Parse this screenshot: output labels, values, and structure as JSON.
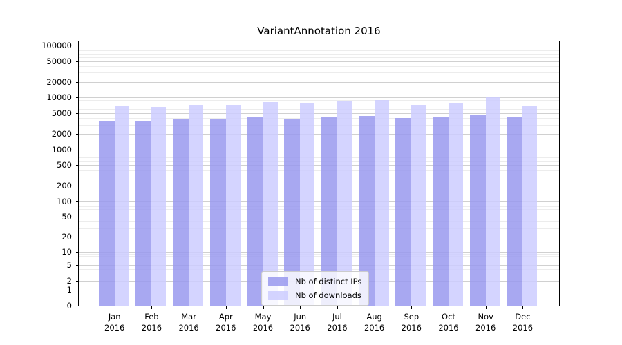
{
  "title": "VariantAnnotation 2016",
  "legend": {
    "items": [
      {
        "label": "Nb of distinct IPs"
      },
      {
        "label": "Nb of downloads"
      }
    ]
  },
  "colors": {
    "distinct_ips": "#9999ee",
    "downloads": "#ccccff",
    "grid_major": "#d0d0d0",
    "grid_minor": "#ececec",
    "axis": "#000000",
    "legend_border": "#cccccc"
  },
  "chart_data": {
    "type": "bar",
    "title": "VariantAnnotation 2016",
    "categories": [
      "Jan",
      "Feb",
      "Mar",
      "Apr",
      "May",
      "Jun",
      "Jul",
      "Aug",
      "Sep",
      "Oct",
      "Nov",
      "Dec"
    ],
    "year_label": "2016",
    "series": [
      {
        "name": "Nb of distinct IPs",
        "color": "#9999ee",
        "values": [
          3430,
          3620,
          3880,
          3930,
          4130,
          3810,
          4350,
          4400,
          4000,
          4220,
          4720,
          4130
        ]
      },
      {
        "name": "Nb of downloads",
        "color": "#ccccff",
        "values": [
          6870,
          6660,
          7150,
          7240,
          8180,
          7600,
          8800,
          8900,
          7150,
          7620,
          10310,
          6890
        ]
      }
    ],
    "y_axis": {
      "scale": "log10(value+1)",
      "tick_values": [
        0,
        1,
        2,
        5,
        10,
        20,
        50,
        100,
        200,
        500,
        1000,
        2000,
        5000,
        10000,
        20000,
        50000,
        100000
      ],
      "range": [
        0,
        100000
      ]
    },
    "x_axis": {
      "tick_label_lines": 2
    },
    "grid": {
      "horizontal": true,
      "minor": true
    },
    "legend_position": "lower center inside plot"
  }
}
